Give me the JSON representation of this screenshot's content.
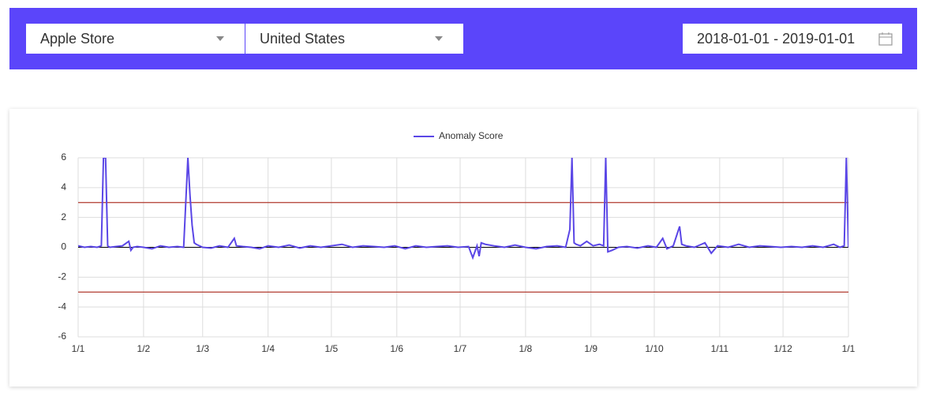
{
  "header": {
    "store": "Apple Store",
    "country": "United States",
    "date_range": "2018-01-01 - 2019-01-01"
  },
  "chart_data": {
    "type": "line",
    "color_zero_line": "#000000",
    "x": [
      0,
      3,
      6,
      9,
      11,
      12,
      13,
      14,
      15,
      18,
      21,
      24,
      25,
      26,
      28,
      31,
      35,
      39,
      43,
      47,
      50,
      52,
      53,
      54,
      55,
      56,
      59,
      63,
      67,
      71,
      74,
      75,
      78,
      82,
      86,
      90,
      95,
      100,
      105,
      110,
      115,
      120,
      125,
      130,
      135,
      140,
      145,
      150,
      155,
      160,
      165,
      170,
      175,
      180,
      185,
      187,
      189,
      190,
      191,
      193,
      197,
      202,
      207,
      212,
      217,
      222,
      227,
      231,
      233,
      234,
      235,
      236,
      238,
      241,
      244,
      247,
      249,
      250,
      251,
      253,
      256,
      260,
      265,
      270,
      274,
      277,
      279,
      282,
      285,
      286,
      288,
      292,
      297,
      300,
      303,
      308,
      313,
      318,
      323,
      328,
      333,
      338,
      343,
      348,
      353,
      358,
      361,
      363,
      364,
      365
    ],
    "series": [
      {
        "name": "Anomaly Score",
        "color": "#5a46e6",
        "values": [
          0.1,
          0,
          0.05,
          0,
          0.1,
          6,
          6,
          0.1,
          0,
          0.05,
          0.1,
          0.4,
          -0.2,
          0,
          0.05,
          0,
          -0.1,
          0.1,
          0,
          0.05,
          0,
          6,
          3.5,
          1.5,
          0.3,
          0.2,
          0,
          -0.05,
          0.1,
          0,
          0.6,
          0.1,
          0.05,
          0,
          -0.1,
          0.1,
          0,
          0.15,
          -0.05,
          0.1,
          0,
          0.1,
          0.2,
          0,
          0.1,
          0.05,
          0,
          0.1,
          -0.1,
          0.1,
          0,
          0.05,
          0.1,
          0,
          0.05,
          -0.7,
          0.1,
          -0.6,
          0.3,
          0.2,
          0.1,
          0,
          0.15,
          0,
          -0.1,
          0.05,
          0.1,
          0,
          1.2,
          6,
          0.3,
          0.2,
          0.1,
          0.4,
          0.1,
          0.2,
          0.1,
          6,
          -0.3,
          -0.2,
          0,
          0.05,
          -0.05,
          0.1,
          0,
          0.6,
          -0.1,
          0.1,
          1.4,
          0.2,
          0.1,
          0,
          0.3,
          -0.4,
          0.1,
          0,
          0.2,
          0,
          0.1,
          0.05,
          0,
          0.05,
          0,
          0.1,
          0,
          0.2,
          0,
          0.1,
          6,
          0
        ]
      }
    ],
    "threshold_lines": {
      "values": [
        3,
        -3
      ],
      "color": "#b03a2e"
    },
    "xlim": [
      0,
      365
    ],
    "xticks": [
      {
        "value": 0,
        "label": "1/1"
      },
      {
        "value": 31,
        "label": "1/2"
      },
      {
        "value": 59,
        "label": "1/3"
      },
      {
        "value": 90,
        "label": "1/4"
      },
      {
        "value": 120,
        "label": "1/5"
      },
      {
        "value": 151,
        "label": "1/6"
      },
      {
        "value": 181,
        "label": "1/7"
      },
      {
        "value": 212,
        "label": "1/8"
      },
      {
        "value": 243,
        "label": "1/9"
      },
      {
        "value": 273,
        "label": "1/10"
      },
      {
        "value": 304,
        "label": "1/11"
      },
      {
        "value": 334,
        "label": "1/12"
      },
      {
        "value": 365,
        "label": "1/1"
      }
    ],
    "ylim": [
      -6,
      6
    ],
    "yticks": [
      -6,
      -4,
      -2,
      0,
      2,
      4,
      6
    ],
    "grid": true,
    "legend": "top"
  }
}
